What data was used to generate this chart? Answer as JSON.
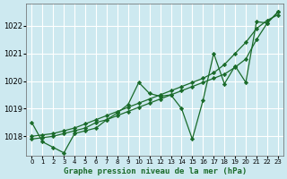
{
  "xlabel": "Graphe pression niveau de la mer (hPa)",
  "bg_color": "#cde9f0",
  "grid_color": "#ffffff",
  "line_color": "#1a6b2a",
  "ylim": [
    1017.3,
    1022.8
  ],
  "xlim": [
    -0.5,
    23.5
  ],
  "yticks": [
    1018,
    1019,
    1020,
    1021,
    1022
  ],
  "xticks": [
    0,
    1,
    2,
    3,
    4,
    5,
    6,
    7,
    8,
    9,
    10,
    11,
    12,
    13,
    14,
    15,
    16,
    17,
    18,
    19,
    20,
    21,
    22,
    23
  ],
  "series_straight1": [
    1017.9,
    1017.95,
    1018.0,
    1018.1,
    1018.2,
    1018.3,
    1018.5,
    1018.6,
    1018.75,
    1018.9,
    1019.05,
    1019.2,
    1019.35,
    1019.5,
    1019.65,
    1019.8,
    1019.95,
    1020.1,
    1020.25,
    1020.5,
    1020.8,
    1021.5,
    1022.1,
    1022.5
  ],
  "series_straight2": [
    1018.0,
    1018.05,
    1018.1,
    1018.2,
    1018.3,
    1018.45,
    1018.6,
    1018.75,
    1018.9,
    1019.05,
    1019.2,
    1019.35,
    1019.5,
    1019.65,
    1019.8,
    1019.95,
    1020.1,
    1020.3,
    1020.6,
    1021.0,
    1021.4,
    1021.9,
    1022.2,
    1022.4
  ],
  "series_detail": [
    1018.5,
    1017.8,
    1017.6,
    1017.4,
    1018.1,
    1018.2,
    1018.3,
    1018.6,
    1018.85,
    1019.15,
    1019.95,
    1019.55,
    1019.45,
    1019.5,
    1019.0,
    1017.9,
    1019.3,
    1021.0,
    1019.9,
    1020.55,
    1019.95,
    1022.15,
    1022.1,
    1022.5
  ]
}
